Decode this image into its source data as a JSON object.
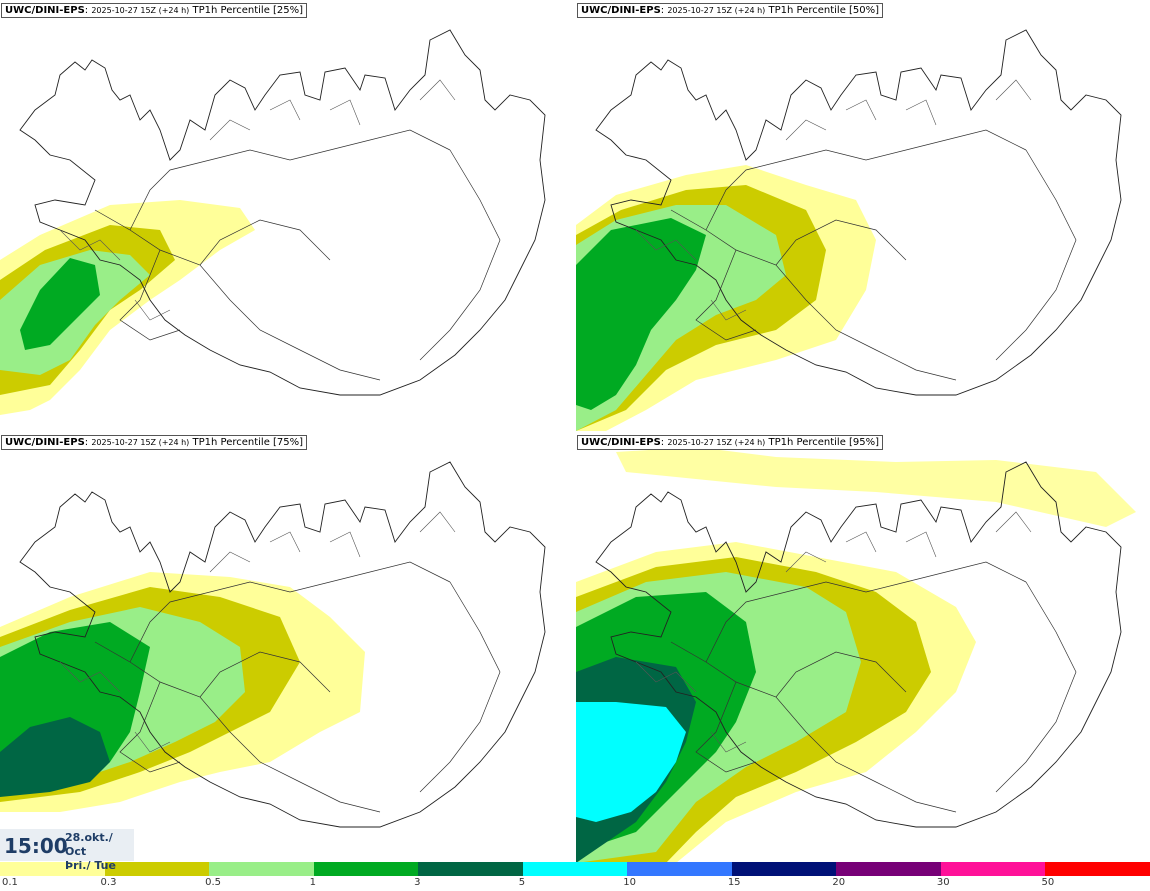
{
  "panels": [
    {
      "model": "UWC/DINI-EPS",
      "run": "2025-10-27 15Z (+24 h)",
      "param": "TP1h Percentile [25%]"
    },
    {
      "model": "UWC/DINI-EPS",
      "run": "2025-10-27 15Z (+24 h)",
      "param": "TP1h Percentile [50%]"
    },
    {
      "model": "UWC/DINI-EPS",
      "run": "2025-10-27 15Z (+24 h)",
      "param": "TP1h Percentile [75%]"
    },
    {
      "model": "UWC/DINI-EPS",
      "run": "2025-10-27 15Z (+24 h)",
      "param": "TP1h Percentile [95%]"
    }
  ],
  "valid_time": {
    "time": "15:00",
    "date_line1": "28.okt./ Oct",
    "date_line2": "Þri./ Tue"
  },
  "legend": {
    "colors": [
      "#ffff99",
      "#cccc00",
      "#99ee88",
      "#00aa22",
      "#006644",
      "#00ffff",
      "#3377ff",
      "#001177",
      "#770077",
      "#ff1199",
      "#ff0000"
    ],
    "ticks": [
      "0.1",
      "0.3",
      "0.5",
      "1",
      "3",
      "5",
      "10",
      "15",
      "20",
      "30",
      "50"
    ]
  }
}
